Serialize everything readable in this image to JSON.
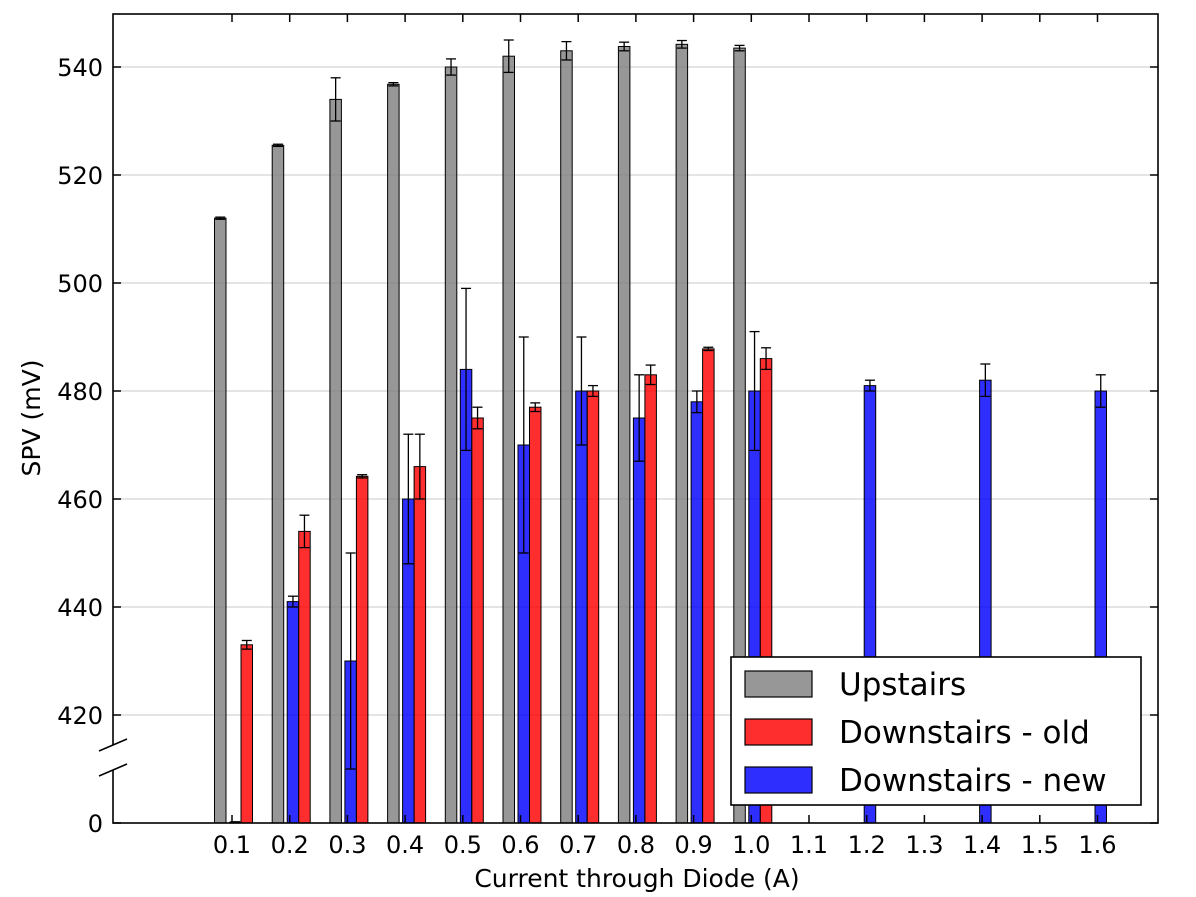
{
  "chart_data": {
    "type": "bar",
    "xlabel": "Current through Diode (A)",
    "ylabel": "SPV (mV)",
    "categories": [
      "0.1",
      "0.2",
      "0.3",
      "0.4",
      "0.5",
      "0.6",
      "0.7",
      "0.8",
      "0.9",
      "1.0",
      "1.1",
      "1.2",
      "1.3",
      "1.4",
      "1.5",
      "1.6"
    ],
    "y_ticks": [
      0,
      420,
      440,
      460,
      480,
      500,
      520,
      540
    ],
    "y_tick_labels": [
      "0",
      "420",
      "440",
      "460",
      "480",
      "500",
      "520",
      "540"
    ],
    "axis_break": {
      "between": [
        0,
        420
      ],
      "lower_value": 0,
      "lower_span_top": 410
    },
    "ylim_upper": [
      410,
      550
    ],
    "grid": "horizontal",
    "legend_position": "lower-right",
    "series": [
      {
        "name": "Upstairs",
        "color": "#808080",
        "values": [
          512,
          525.5,
          534,
          536.8,
          540,
          542,
          543,
          543.8,
          544.2,
          543.5,
          null,
          null,
          null,
          null,
          null,
          null
        ],
        "errors": [
          0.2,
          0.2,
          4,
          0.3,
          1.5,
          3,
          1.7,
          0.8,
          0.7,
          0.5,
          null,
          null,
          null,
          null,
          null,
          null
        ]
      },
      {
        "name": "Downstairs - new",
        "color": "#0000ff",
        "values": [
          5,
          441,
          430,
          460,
          484,
          470,
          480,
          475,
          478,
          480,
          null,
          481,
          null,
          482,
          null,
          480
        ],
        "errors": [
          4.5,
          1,
          20,
          12,
          15,
          20,
          10,
          8,
          2,
          11,
          null,
          1,
          null,
          3,
          null,
          3
        ]
      },
      {
        "name": "Downstairs - old",
        "color": "#ff0000",
        "values": [
          433,
          454,
          464.2,
          466,
          475,
          477,
          480,
          483,
          487.8,
          486,
          null,
          null,
          null,
          null,
          null,
          null
        ],
        "errors": [
          0.8,
          3,
          0.3,
          6,
          2,
          0.8,
          1,
          1.8,
          0.3,
          2,
          null,
          null,
          null,
          null,
          null,
          null
        ]
      }
    ],
    "legend_order": [
      "Upstairs",
      "Downstairs - old",
      "Downstairs - new"
    ]
  }
}
